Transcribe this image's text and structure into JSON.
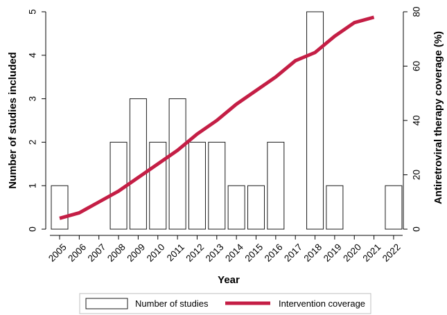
{
  "chart_data": {
    "type": "bar",
    "title": "",
    "xlabel": "Year",
    "ylabel": "Number of studies included",
    "y2label": "Antiretroviral therapy coverage (%)",
    "categories": [
      "2005",
      "2006",
      "2007",
      "2008",
      "2009",
      "2010",
      "2011",
      "2012",
      "2013",
      "2014",
      "2015",
      "2016",
      "2017",
      "2018",
      "2019",
      "2020",
      "2021",
      "2022"
    ],
    "ylim": [
      0,
      5
    ],
    "y2lim": [
      0,
      80
    ],
    "yticks": [
      "0",
      "1",
      "2",
      "3",
      "4",
      "5"
    ],
    "y2ticks": [
      "0",
      "20",
      "40",
      "60",
      "80"
    ],
    "grid": false,
    "legend_position": "bottom",
    "series": [
      {
        "name": "Number of studies",
        "type": "bar",
        "axis": "left",
        "fill": "#ffffff",
        "stroke": "#1a1a1a",
        "values": [
          1,
          0,
          0,
          2,
          3,
          2,
          3,
          2,
          2,
          1,
          1,
          2,
          0,
          5,
          1,
          0,
          0,
          1
        ]
      },
      {
        "name": "Intervention coverage",
        "type": "line",
        "axis": "right",
        "color": "#c41e45",
        "x": [
          "2005",
          "2006",
          "2007",
          "2008",
          "2009",
          "2010",
          "2011",
          "2012",
          "2013",
          "2014",
          "2015",
          "2016",
          "2017",
          "2018",
          "2019",
          "2020",
          "2021"
        ],
        "values": [
          4,
          6,
          10,
          14,
          19,
          24,
          29,
          35,
          40,
          46,
          51,
          56,
          62,
          65,
          71,
          76,
          78
        ]
      }
    ]
  }
}
